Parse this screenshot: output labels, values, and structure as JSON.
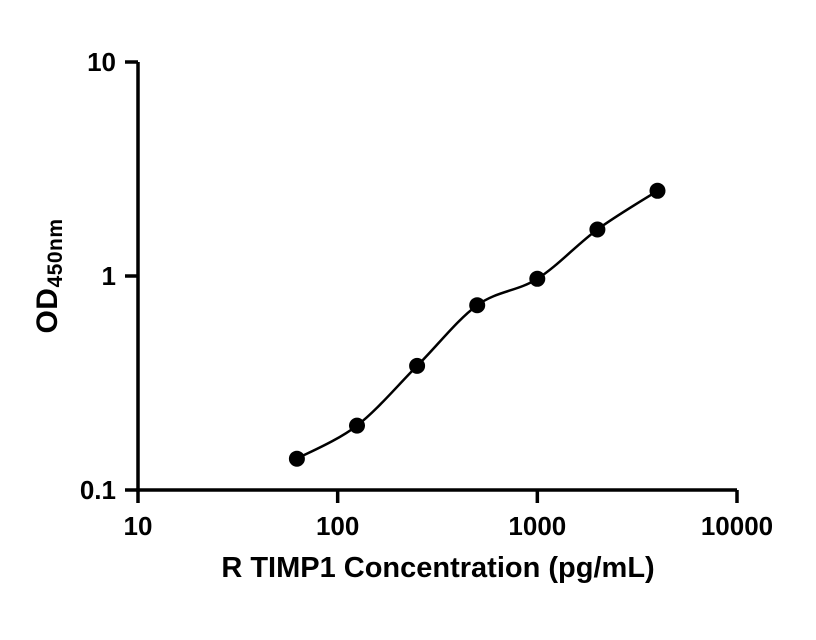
{
  "chart_data": {
    "type": "scatter",
    "title": "",
    "xlabel": "R TIMP1 Concentration (pg/mL)",
    "ylabel_main": "OD",
    "ylabel_sub": "450nm",
    "xscale": "log",
    "yscale": "log",
    "xlim": [
      10,
      10000
    ],
    "ylim": [
      0.1,
      10
    ],
    "x_ticks": [
      {
        "v": 10,
        "label": "10"
      },
      {
        "v": 100,
        "label": "100"
      },
      {
        "v": 1000,
        "label": "1000"
      },
      {
        "v": 10000,
        "label": "10000"
      }
    ],
    "y_ticks": [
      {
        "v": 0.1,
        "label": "0.1"
      },
      {
        "v": 1,
        "label": "1"
      },
      {
        "v": 10,
        "label": "10"
      }
    ],
    "points": [
      {
        "x": 62.5,
        "y": 0.14
      },
      {
        "x": 125,
        "y": 0.2
      },
      {
        "x": 250,
        "y": 0.38
      },
      {
        "x": 500,
        "y": 0.73
      },
      {
        "x": 1000,
        "y": 0.97
      },
      {
        "x": 2000,
        "y": 1.65
      },
      {
        "x": 4000,
        "y": 2.5
      }
    ],
    "line_color": "#000000",
    "marker_color": "#000000",
    "axis_color": "#000000",
    "background": "#ffffff",
    "grid": false,
    "legend": false
  }
}
